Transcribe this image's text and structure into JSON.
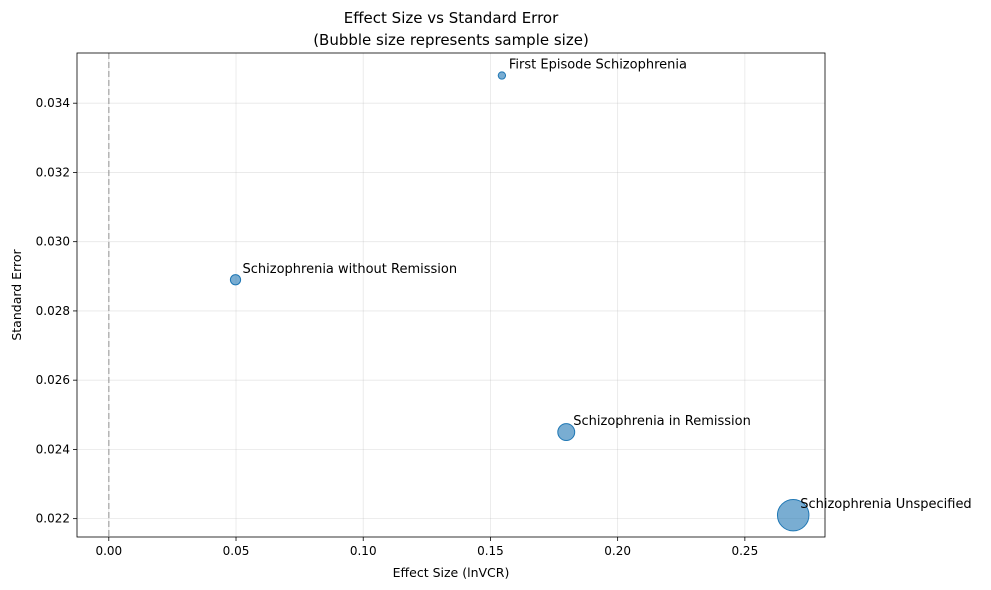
{
  "chart_data": {
    "type": "scatter",
    "title": "Effect Size vs Standard Error",
    "subtitle": "(Bubble size represents sample size)",
    "xlabel": "Effect Size (lnVCR)",
    "ylabel": "Standard Error",
    "xlim": [
      -0.0125,
      0.2815
    ],
    "ylim": [
      0.02147,
      0.03545
    ],
    "xticks": [
      0.0,
      0.05,
      0.1,
      0.15,
      0.2,
      0.25
    ],
    "xtick_labels": [
      "0.00",
      "0.05",
      "0.10",
      "0.15",
      "0.20",
      "0.25"
    ],
    "yticks": [
      0.022,
      0.024,
      0.026,
      0.028,
      0.03,
      0.032,
      0.034
    ],
    "ytick_labels": [
      "0.022",
      "0.024",
      "0.026",
      "0.028",
      "0.030",
      "0.032",
      "0.034"
    ],
    "grid": true,
    "reference_line": {
      "x": 0.0,
      "style": "dashed",
      "color": "#999999"
    },
    "marker_color": "#1f77b4",
    "points": [
      {
        "label": "First Episode Schizophrenia",
        "x": 0.1545,
        "y": 0.0348,
        "size": 28
      },
      {
        "label": "Schizophrenia without Remission",
        "x": 0.0498,
        "y": 0.0289,
        "size": 55
      },
      {
        "label": "Schizophrenia in Remission",
        "x": 0.1798,
        "y": 0.0245,
        "size": 150
      },
      {
        "label": "Schizophrenia Unspecified",
        "x": 0.269,
        "y": 0.0221,
        "size": 520
      }
    ]
  }
}
